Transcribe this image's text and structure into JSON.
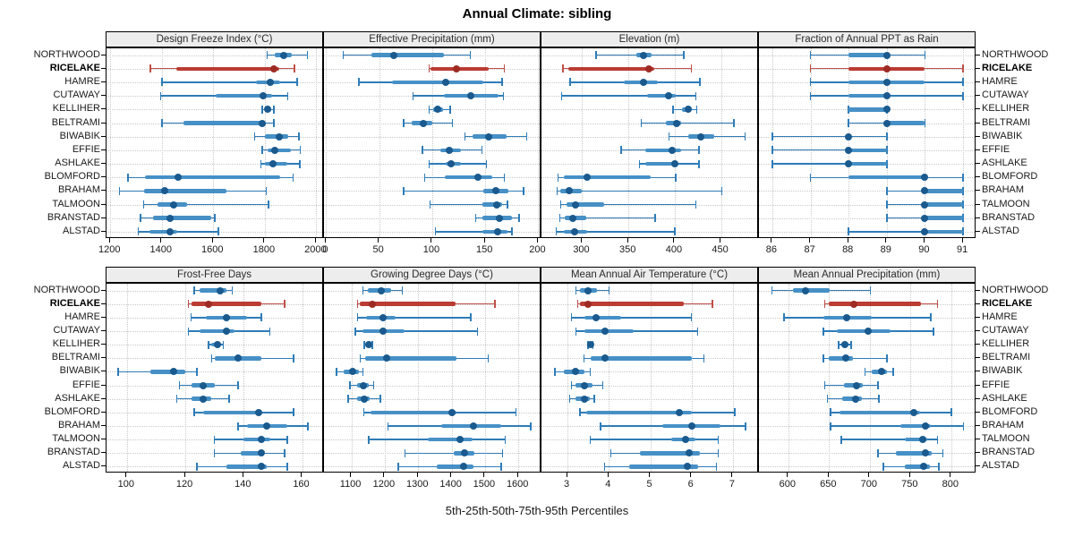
{
  "title": "Annual Climate: sibling",
  "footer": "5th-25th-50th-75th-95th Percentiles",
  "chart_data": {
    "type": "dotplot-percentile-trellis",
    "title": "Annual Climate: sibling",
    "caption": "5th-25th-50th-75th-95th Percentiles",
    "percentiles": [
      5,
      25,
      50,
      75,
      95
    ],
    "stations": [
      "NORTHWOOD",
      "RICELAKE",
      "HAMRE",
      "CUTAWAY",
      "KELLIHER",
      "BELTRAMI",
      "BIWABIK",
      "EFFIE",
      "ASHLAKE",
      "BLOMFORD",
      "BRAHAM",
      "TALMOON",
      "BRANSTAD",
      "ALSTAD"
    ],
    "highlighted_station": "RICELAKE",
    "grid": "dotted",
    "layout": "2 rows x 4 columns, station labels on left and right",
    "colors": {
      "normal": {
        "line": "#2e7cb8",
        "band": "#4690c6",
        "dot": "#1a5a8e"
      },
      "highlight": {
        "line": "#c05048",
        "band": "#ba3c33",
        "dot": "#9e2b23"
      },
      "strip_bg": "#ededed",
      "grid_line": "#c9c9c9",
      "border": "#000000",
      "text": "#1a1a1a"
    },
    "panels": [
      {
        "title": "Design Freeze Index (°C)",
        "xlim": [
          1185,
          2030
        ],
        "ticks": [
          1200,
          1400,
          1600,
          1800,
          2000
        ],
        "series": {
          "NORTHWOOD": [
            1810,
            1840,
            1875,
            1905,
            1965
          ],
          "RICELAKE": [
            1355,
            1455,
            1835,
            1855,
            1915
          ],
          "HAMRE": [
            1400,
            1765,
            1820,
            1860,
            1925
          ],
          "CUTAWAY": [
            1395,
            1610,
            1795,
            1830,
            1890
          ],
          "KELLIHER": [
            1790,
            1800,
            1812,
            1824,
            1835
          ],
          "BELTRAMI": [
            1400,
            1485,
            1790,
            1802,
            1835
          ],
          "BIWABIK": [
            1760,
            1800,
            1855,
            1890,
            1932
          ],
          "EFFIE": [
            1790,
            1810,
            1838,
            1900,
            1938
          ],
          "ASHLAKE": [
            1785,
            1800,
            1832,
            1886,
            1936
          ],
          "BLOMFORD": [
            1268,
            1333,
            1462,
            1858,
            1910
          ],
          "BRAHAM": [
            1235,
            1330,
            1412,
            1650,
            1806
          ],
          "TALMOON": [
            1330,
            1383,
            1444,
            1500,
            1815
          ],
          "BRANSTAD": [
            1318,
            1365,
            1432,
            1592,
            1605
          ],
          "ALSTAD": [
            1308,
            1352,
            1430,
            1458,
            1620
          ]
        }
      },
      {
        "title": "Effective Precipitation (mm)",
        "xlim": [
          -2,
          203
        ],
        "ticks": [
          0,
          50,
          100,
          150,
          200
        ],
        "series": {
          "NORTHWOOD": [
            16,
            43,
            64,
            111,
            136
          ],
          "RICELAKE": [
            97,
            98,
            123,
            153,
            168
          ],
          "HAMRE": [
            31,
            62,
            113,
            148,
            166
          ],
          "CUTAWAY": [
            82,
            111,
            136,
            163,
            167
          ],
          "KELLIHER": [
            97,
            101,
            105,
            110,
            117
          ],
          "BELTRAMI": [
            73,
            81,
            92,
            100,
            119
          ],
          "BIWABIK": [
            131,
            138,
            153,
            170,
            189
          ],
          "EFFIE": [
            91,
            108,
            116,
            127,
            147
          ],
          "ASHLAKE": [
            97,
            113,
            118,
            127,
            151
          ],
          "BLOMFORD": [
            93,
            112,
            143,
            157,
            168
          ],
          "BRAHAM": [
            73,
            148,
            160,
            172,
            186
          ],
          "TALMOON": [
            98,
            147,
            161,
            166,
            171
          ],
          "BRANSTAD": [
            141,
            147,
            163,
            175,
            182
          ],
          "ALSTAD": [
            103,
            147,
            162,
            171,
            175
          ]
        }
      },
      {
        "title": "Elevation (m)",
        "xlim": [
          256,
          491
        ],
        "ticks": [
          300,
          350,
          400,
          450
        ],
        "series": {
          "NORTHWOOD": [
            315,
            358,
            366,
            375,
            410
          ],
          "RICELAKE": [
            279,
            285,
            372,
            378,
            418
          ],
          "HAMRE": [
            287,
            345,
            366,
            382,
            427
          ],
          "CUTAWAY": [
            278,
            370,
            393,
            401,
            423
          ],
          "KELLIHER": [
            398,
            408,
            415,
            418,
            424
          ],
          "BELTRAMI": [
            364,
            390,
            402,
            407,
            464
          ],
          "BIWABIK": [
            394,
            415,
            428,
            443,
            476
          ],
          "EFFIE": [
            342,
            368,
            397,
            407,
            426
          ],
          "ASHLAKE": [
            362,
            368,
            400,
            404,
            426
          ],
          "BLOMFORD": [
            274,
            280,
            305,
            374,
            401
          ],
          "BRAHAM": [
            273,
            276,
            286,
            300,
            451
          ],
          "TALMOON": [
            277,
            283,
            293,
            324,
            423
          ],
          "BRANSTAD": [
            276,
            281,
            290,
            304,
            379
          ],
          "ALSTAD": [
            272,
            280,
            292,
            305,
            400
          ]
        }
      },
      {
        "title": "Fraction of Annual PPT as Rain",
        "xlim": [
          85.65,
          91.35
        ],
        "ticks": [
          86,
          87,
          88,
          89,
          90,
          91
        ],
        "series": {
          "NORTHWOOD": [
            87,
            88,
            89,
            89,
            90
          ],
          "RICELAKE": [
            87,
            88,
            89,
            90,
            91
          ],
          "HAMRE": [
            87,
            88,
            89,
            90,
            91
          ],
          "CUTAWAY": [
            87,
            88,
            89,
            89,
            91
          ],
          "KELLIHER": [
            88,
            88,
            89,
            89,
            89
          ],
          "BELTRAMI": [
            88,
            89,
            89,
            90,
            90
          ],
          "BIWABIK": [
            86,
            88,
            88,
            88,
            89
          ],
          "EFFIE": [
            86,
            88,
            88,
            89,
            89
          ],
          "ASHLAKE": [
            86,
            88,
            88,
            89,
            89
          ],
          "BLOMFORD": [
            87,
            88,
            90,
            90,
            91
          ],
          "BRAHAM": [
            89,
            90,
            90,
            91,
            91
          ],
          "TALMOON": [
            89,
            90,
            90,
            91,
            91
          ],
          "BRANSTAD": [
            89,
            90,
            90,
            91,
            91
          ],
          "ALSTAD": [
            88,
            90,
            90,
            91,
            91
          ]
        }
      },
      {
        "title": "Frost-Free Days",
        "xlim": [
          93,
          167.5
        ],
        "ticks": [
          100,
          120,
          140,
          160
        ],
        "series": {
          "NORTHWOOD": [
            123,
            125,
            132,
            134,
            136
          ],
          "RICELAKE": [
            121,
            122,
            128,
            146,
            154
          ],
          "HAMRE": [
            122,
            127,
            134,
            141,
            146
          ],
          "CUTAWAY": [
            121,
            125,
            134,
            137,
            149
          ],
          "KELLIHER": [
            128,
            129,
            131,
            132,
            133
          ],
          "BELTRAMI": [
            129,
            130,
            138,
            146,
            157
          ],
          "BIWABIK": [
            97,
            108,
            116,
            120,
            124
          ],
          "EFFIE": [
            118,
            122,
            126,
            130,
            138
          ],
          "ASHLAKE": [
            117,
            122,
            126,
            129,
            135
          ],
          "BLOMFORD": [
            123,
            126,
            145,
            146,
            157
          ],
          "BRAHAM": [
            138,
            141,
            148,
            155,
            162
          ],
          "TALMOON": [
            130,
            140,
            146,
            149,
            155
          ],
          "BRANSTAD": [
            130,
            139,
            146,
            147,
            154
          ],
          "ALSTAD": [
            124,
            134,
            146,
            148,
            155
          ]
        }
      },
      {
        "title": "Growing Degree Days (°C)",
        "xlim": [
          1018,
          1669
        ],
        "ticks": [
          1100,
          1200,
          1300,
          1400,
          1500,
          1600
        ],
        "series": {
          "NORTHWOOD": [
            1135,
            1150,
            1190,
            1220,
            1252
          ],
          "RICELAKE": [
            1118,
            1125,
            1162,
            1412,
            1530
          ],
          "HAMRE": [
            1118,
            1143,
            1196,
            1232,
            1458
          ],
          "CUTAWAY": [
            1112,
            1134,
            1195,
            1259,
            1477
          ],
          "KELLIHER": [
            1138,
            1144,
            1152,
            1157,
            1163
          ],
          "BELTRAMI": [
            1127,
            1140,
            1205,
            1414,
            1510
          ],
          "BIWABIK": [
            1055,
            1078,
            1104,
            1122,
            1134
          ],
          "EFFIE": [
            1096,
            1118,
            1136,
            1152,
            1167
          ],
          "ASHLAKE": [
            1090,
            1118,
            1138,
            1155,
            1187
          ],
          "BLOMFORD": [
            1137,
            1158,
            1400,
            1414,
            1592
          ],
          "BRAHAM": [
            1209,
            1370,
            1466,
            1548,
            1637
          ],
          "TALMOON": [
            1152,
            1328,
            1426,
            1464,
            1560
          ],
          "BRANSTAD": [
            1261,
            1405,
            1438,
            1468,
            1553
          ],
          "ALSTAD": [
            1241,
            1355,
            1437,
            1466,
            1548
          ]
        }
      },
      {
        "title": "Mean Annual Air Temperature (°C)",
        "xlim": [
          2.37,
          7.63
        ],
        "ticks": [
          3,
          4,
          5,
          6,
          7
        ],
        "series": {
          "NORTHWOOD": [
            3.2,
            3.3,
            3.5,
            3.7,
            4.0
          ],
          "RICELAKE": [
            3.25,
            3.3,
            3.5,
            5.8,
            6.5
          ],
          "HAMRE": [
            3.1,
            3.4,
            3.7,
            4.3,
            6.0
          ],
          "CUTAWAY": [
            3.2,
            3.4,
            3.9,
            4.6,
            6.15
          ],
          "KELLIHER": [
            3.5,
            3.52,
            3.56,
            3.6,
            3.62
          ],
          "BELTRAMI": [
            3.4,
            3.55,
            3.9,
            6.0,
            6.3
          ],
          "BIWABIK": [
            2.7,
            2.9,
            3.2,
            3.4,
            3.55
          ],
          "EFFIE": [
            3.1,
            3.2,
            3.4,
            3.6,
            3.85
          ],
          "ASHLAKE": [
            3.05,
            3.2,
            3.4,
            3.55,
            3.65
          ],
          "BLOMFORD": [
            3.3,
            3.45,
            5.7,
            6.0,
            7.05
          ],
          "BRAHAM": [
            3.8,
            5.3,
            6.0,
            6.7,
            7.3
          ],
          "TALMOON": [
            3.55,
            5.5,
            5.85,
            6.1,
            6.65
          ],
          "BRANSTAD": [
            4.05,
            4.75,
            5.95,
            6.2,
            6.65
          ],
          "ALSTAD": [
            3.9,
            4.5,
            5.9,
            6.15,
            6.6
          ]
        }
      },
      {
        "title": "Mean Annual Precipitation (mm)",
        "xlim": [
          564,
          831
        ],
        "ticks": [
          600,
          650,
          700,
          750,
          800
        ],
        "series": {
          "NORTHWOOD": [
            580,
            606,
            621,
            651,
            701
          ],
          "RICELAKE": [
            645,
            650,
            680,
            763,
            783
          ],
          "HAMRE": [
            595,
            643,
            672,
            702,
            775
          ],
          "CUTAWAY": [
            643,
            660,
            698,
            725,
            778
          ],
          "KELLIHER": [
            662,
            665,
            669,
            673,
            677
          ],
          "BELTRAMI": [
            643,
            650,
            670,
            679,
            721
          ],
          "BIWABIK": [
            694,
            702,
            715,
            721,
            729
          ],
          "EFFIE": [
            645,
            668,
            684,
            691,
            710
          ],
          "ASHLAKE": [
            648,
            666,
            683,
            690,
            711
          ],
          "BLOMFORD": [
            652,
            663,
            754,
            762,
            800
          ],
          "BRAHAM": [
            652,
            738,
            768,
            775,
            815
          ],
          "TALMOON": [
            665,
            743,
            765,
            771,
            783
          ],
          "BRANSTAD": [
            710,
            732,
            768,
            776,
            790
          ],
          "ALSTAD": [
            717,
            743,
            766,
            774,
            785
          ]
        }
      }
    ]
  }
}
